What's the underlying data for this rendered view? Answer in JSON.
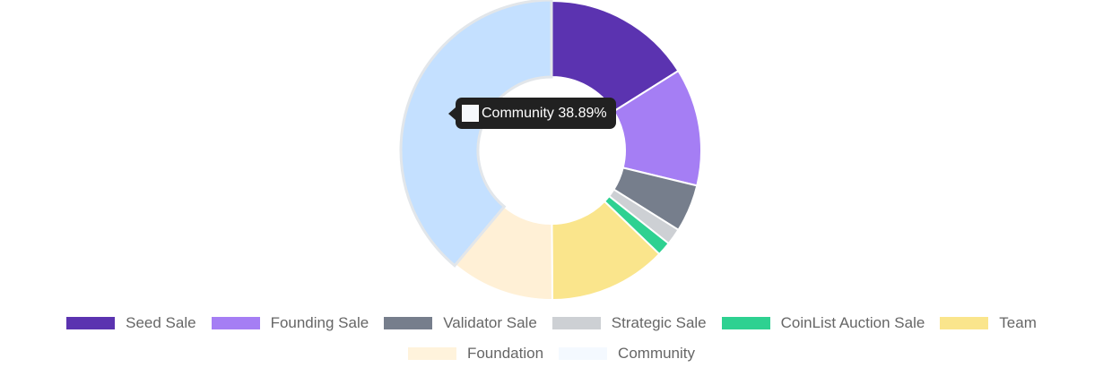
{
  "chart_data": {
    "type": "pie",
    "variant": "doughnut",
    "categories": [
      "Seed Sale",
      "Founding Sale",
      "Validator Sale",
      "Strategic Sale",
      "CoinList Auction Sale",
      "Team",
      "Foundation",
      "Community"
    ],
    "values": [
      16.07,
      12.72,
      5.13,
      1.78,
      1.5,
      12.71,
      11.2,
      38.89
    ],
    "colors": [
      "#5b33b0",
      "#a57ef4",
      "#767e8c",
      "#cdd0d4",
      "#2ed191",
      "#fae58c",
      "#fff0d6",
      "#c4e0ff"
    ],
    "legend_colors": [
      "#5b33b0",
      "#a57ef4",
      "#767e8c",
      "#cdd0d4",
      "#2ed191",
      "#fae58c",
      "#fff3dc",
      "#f4f9ff"
    ],
    "legend": "bottom",
    "active_index": 7,
    "tooltip": {
      "label": "Community 38.89%",
      "swatch_color": "#f5f8fc"
    }
  }
}
